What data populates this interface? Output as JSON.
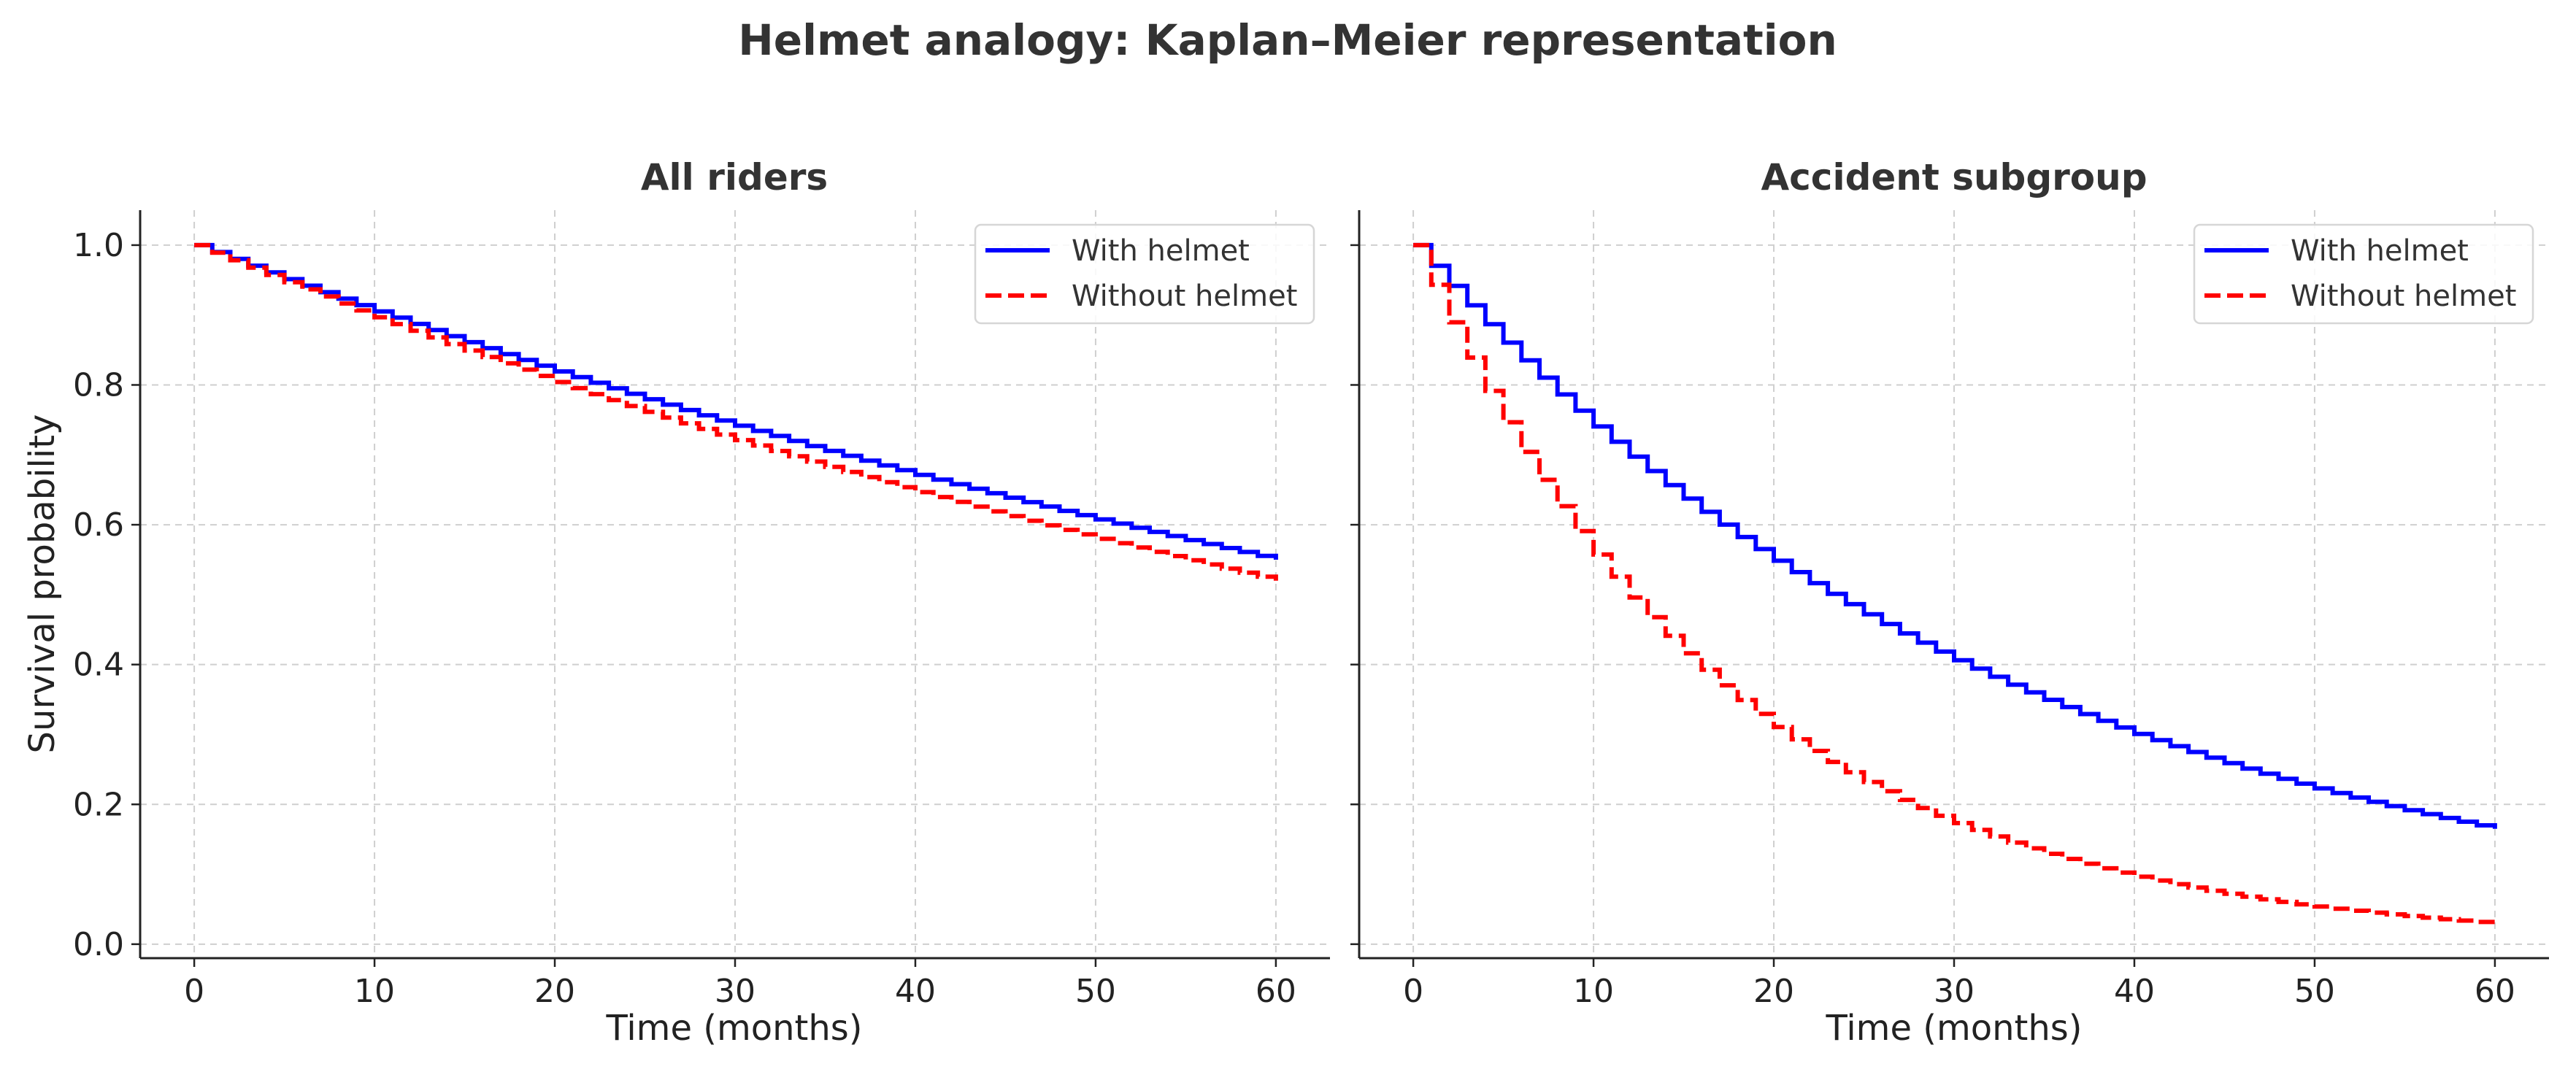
{
  "figure_title": "Helmet analogy: Kaplan–Meier representation",
  "chart_data": [
    {
      "type": "line",
      "step": true,
      "title": "All riders",
      "xlabel": "Time (months)",
      "ylabel": "Survival probability",
      "xlim": [
        -3,
        63
      ],
      "ylim": [
        -0.02,
        1.05
      ],
      "xticks": [
        0,
        10,
        20,
        30,
        40,
        50,
        60
      ],
      "xtick_labels": [
        "0",
        "10",
        "20",
        "30",
        "40",
        "50",
        "60"
      ],
      "yticks": [
        0.0,
        0.2,
        0.4,
        0.6,
        0.8,
        1.0
      ],
      "ytick_labels": [
        "0.0",
        "0.2",
        "0.4",
        "0.6",
        "0.8",
        "1.0"
      ],
      "grid": true,
      "legend_position": "top-right",
      "series": [
        {
          "name": "With helmet",
          "color": "#0000ff",
          "style": "solid",
          "model": "exponential",
          "x": [
            0,
            60
          ],
          "y": [
            1.0,
            0.55
          ]
        },
        {
          "name": "Without helmet",
          "color": "#ff0000",
          "style": "dashed",
          "model": "exponential",
          "x": [
            0,
            60
          ],
          "y": [
            1.0,
            0.52
          ]
        }
      ]
    },
    {
      "type": "line",
      "step": true,
      "title": "Accident subgroup",
      "xlabel": "Time (months)",
      "ylabel": "",
      "xlim": [
        -3,
        63
      ],
      "ylim": [
        -0.02,
        1.05
      ],
      "xticks": [
        0,
        10,
        20,
        30,
        40,
        50,
        60
      ],
      "xtick_labels": [
        "0",
        "10",
        "20",
        "30",
        "40",
        "50",
        "60"
      ],
      "yticks": [
        0.0,
        0.2,
        0.4,
        0.6,
        0.8,
        1.0
      ],
      "ytick_labels": [
        "",
        "",
        "",
        "",
        "",
        ""
      ],
      "grid": true,
      "legend_position": "top-right",
      "series": [
        {
          "name": "With helmet",
          "color": "#0000ff",
          "style": "solid",
          "model": "exponential",
          "x": [
            0,
            60
          ],
          "y": [
            1.0,
            0.165
          ]
        },
        {
          "name": "Without helmet",
          "color": "#ff0000",
          "style": "dashed",
          "model": "exponential",
          "x": [
            0,
            60
          ],
          "y": [
            1.0,
            0.03
          ]
        }
      ]
    }
  ]
}
